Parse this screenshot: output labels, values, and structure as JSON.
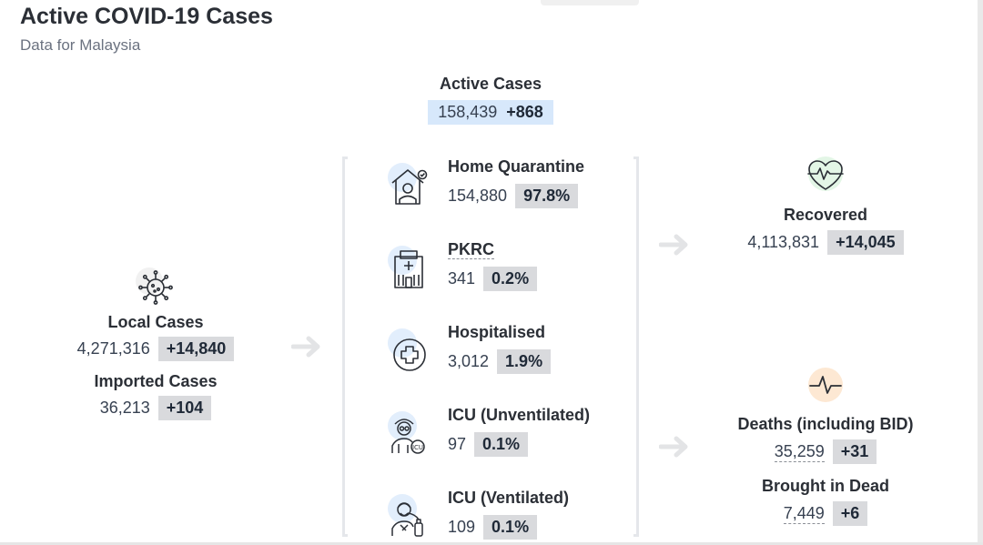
{
  "header": {
    "title": "Active COVID-19 Cases",
    "subtitle": "Data for Malaysia"
  },
  "active": {
    "label": "Active Cases",
    "value": "158,439",
    "delta": "+868"
  },
  "left": {
    "local_label": "Local Cases",
    "local_value": "4,271,316",
    "local_delta": "+14,840",
    "imported_label": "Imported Cases",
    "imported_value": "36,213",
    "imported_delta": "+104",
    "icon": "virus-icon"
  },
  "middle": [
    {
      "label": "Home Quarantine",
      "value": "154,880",
      "percent": "97.8%",
      "icon": "home-quarantine-icon"
    },
    {
      "label": "PKRC",
      "value": "341",
      "percent": "0.2%",
      "icon": "quarantine-centre-icon"
    },
    {
      "label": "Hospitalised",
      "value": "3,012",
      "percent": "1.9%",
      "icon": "hospital-cross-icon"
    },
    {
      "label": "ICU (Unventilated)",
      "value": "97",
      "percent": "0.1%",
      "icon": "icu-patient-icon"
    },
    {
      "label": "ICU (Ventilated)",
      "value": "109",
      "percent": "0.1%",
      "icon": "ventilator-icon"
    }
  ],
  "right": {
    "recovered_label": "Recovered",
    "recovered_value": "4,113,831",
    "recovered_delta": "+14,045",
    "recovered_icon": "heart-pulse-icon",
    "deaths_label": "Deaths (including BID)",
    "deaths_value": "35,259",
    "deaths_delta": "+31",
    "deaths_icon": "pulse-line-icon",
    "bid_label": "Brought in Dead",
    "bid_value": "7,449",
    "bid_delta": "+6"
  },
  "colors": {
    "active_box": "#d7e8fb",
    "badge": "#d9dadd",
    "mid_icon_bg": "#e2eefc",
    "recovered_icon_bg": "#e3f6e6",
    "deaths_icon_bg": "#fde8d3"
  }
}
